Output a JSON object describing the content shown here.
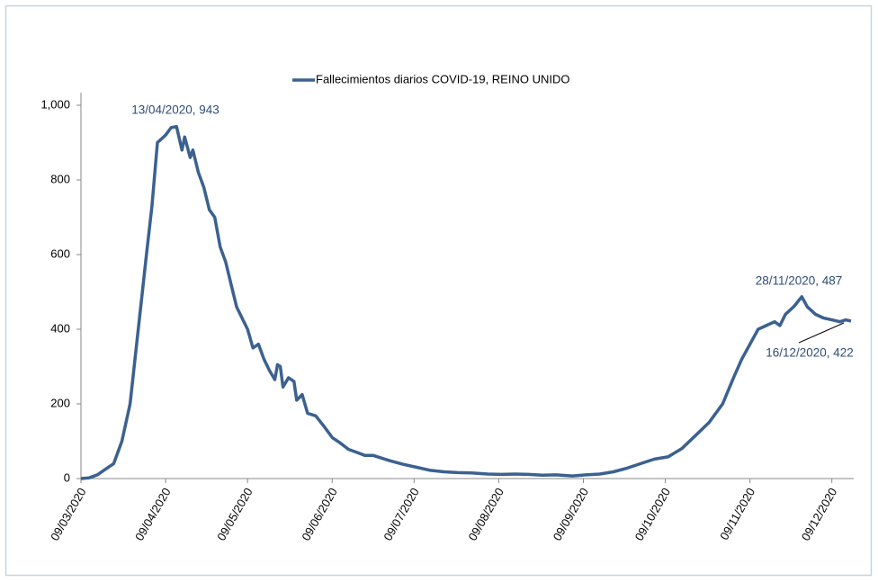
{
  "chart_data": {
    "type": "line",
    "x": [
      "09/03/2020",
      "12/03/2020",
      "15/03/2020",
      "18/03/2020",
      "21/03/2020",
      "24/03/2020",
      "27/03/2020",
      "30/03/2020",
      "02/04/2020",
      "04/04/2020",
      "06/04/2020",
      "09/04/2020",
      "11/04/2020",
      "13/04/2020",
      "15/04/2020",
      "16/04/2020",
      "18/04/2020",
      "19/04/2020",
      "21/04/2020",
      "23/04/2020",
      "25/04/2020",
      "27/04/2020",
      "29/04/2020",
      "01/05/2020",
      "03/05/2020",
      "05/05/2020",
      "07/05/2020",
      "09/05/2020",
      "11/05/2020",
      "13/05/2020",
      "15/05/2020",
      "17/05/2020",
      "19/05/2020",
      "20/05/2020",
      "21/05/2020",
      "22/05/2020",
      "24/05/2020",
      "26/05/2020",
      "27/05/2020",
      "29/05/2020",
      "31/05/2020",
      "03/06/2020",
      "06/06/2020",
      "09/06/2020",
      "12/06/2020",
      "15/06/2020",
      "18/06/2020",
      "21/06/2020",
      "24/06/2020",
      "27/06/2020",
      "30/06/2020",
      "05/07/2020",
      "10/07/2020",
      "15/07/2020",
      "20/07/2020",
      "25/07/2020",
      "30/07/2020",
      "05/08/2020",
      "10/08/2020",
      "15/08/2020",
      "20/08/2020",
      "25/08/2020",
      "30/08/2020",
      "05/09/2020",
      "10/09/2020",
      "15/09/2020",
      "20/09/2020",
      "25/09/2020",
      "30/09/2020",
      "05/10/2020",
      "10/10/2020",
      "15/10/2020",
      "20/10/2020",
      "25/10/2020",
      "30/10/2020",
      "03/11/2020",
      "06/11/2020",
      "09/11/2020",
      "12/11/2020",
      "15/11/2020",
      "18/11/2020",
      "20/11/2020",
      "22/11/2020",
      "25/11/2020",
      "28/11/2020",
      "30/11/2020",
      "03/12/2020",
      "06/12/2020",
      "09/12/2020",
      "12/12/2020",
      "14/12/2020",
      "16/12/2020"
    ],
    "series": [
      {
        "name": "Fallecimientos diarios COVID-19, REINO UNIDO",
        "color": "#3b6190",
        "values": [
          0,
          2,
          10,
          25,
          40,
          100,
          200,
          400,
          600,
          730,
          900,
          920,
          940,
          943,
          880,
          915,
          860,
          880,
          820,
          780,
          720,
          700,
          620,
          580,
          520,
          460,
          430,
          400,
          350,
          360,
          320,
          290,
          265,
          305,
          300,
          245,
          270,
          260,
          210,
          225,
          175,
          168,
          140,
          110,
          95,
          78,
          70,
          62,
          62,
          55,
          48,
          38,
          30,
          22,
          18,
          16,
          15,
          12,
          11,
          12,
          11,
          9,
          10,
          7,
          10,
          12,
          18,
          28,
          40,
          52,
          58,
          80,
          115,
          150,
          200,
          270,
          320,
          360,
          400,
          410,
          420,
          410,
          440,
          460,
          487,
          460,
          440,
          430,
          425,
          420,
          425,
          422
        ]
      }
    ],
    "xlim": [
      "09/03/2020",
      "17/12/2020"
    ],
    "xticks": [
      "09/03/2020",
      "09/04/2020",
      "09/05/2020",
      "09/06/2020",
      "09/07/2020",
      "09/08/2020",
      "09/09/2020",
      "09/10/2020",
      "09/11/2020",
      "09/12/2020"
    ],
    "ylim": [
      0,
      1000
    ],
    "yticks": [
      0,
      200,
      400,
      600,
      800,
      {
        "value": 1000,
        "label": "1,000"
      }
    ],
    "annotations": [
      "13/04/2020, 943",
      "28/11/2020, 487",
      "16/12/2020, 422"
    ],
    "legend": "top"
  }
}
